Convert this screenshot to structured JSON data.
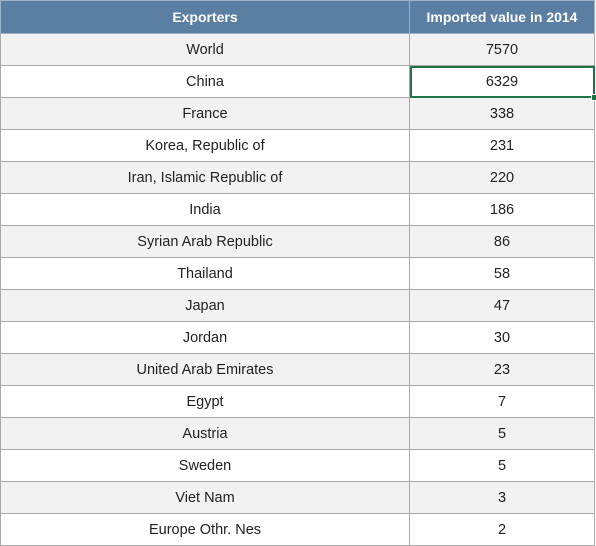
{
  "table": {
    "headers": {
      "exporters": "Exporters",
      "value": "Imported value in 2014"
    },
    "rows": [
      {
        "exporter": "World",
        "value": "7570"
      },
      {
        "exporter": "China",
        "value": "6329"
      },
      {
        "exporter": "France",
        "value": "338"
      },
      {
        "exporter": "Korea, Republic of",
        "value": "231"
      },
      {
        "exporter": "Iran, Islamic Republic of",
        "value": "220"
      },
      {
        "exporter": "India",
        "value": "186"
      },
      {
        "exporter": "Syrian Arab Republic",
        "value": "86"
      },
      {
        "exporter": "Thailand",
        "value": "58"
      },
      {
        "exporter": "Japan",
        "value": "47"
      },
      {
        "exporter": "Jordan",
        "value": "30"
      },
      {
        "exporter": "United Arab Emirates",
        "value": "23"
      },
      {
        "exporter": "Egypt",
        "value": "7"
      },
      {
        "exporter": "Austria",
        "value": "5"
      },
      {
        "exporter": "Sweden",
        "value": "5"
      },
      {
        "exporter": "Viet Nam",
        "value": "3"
      },
      {
        "exporter": "Europe Othr. Nes",
        "value": "2"
      }
    ]
  },
  "colors": {
    "header_bg": "#5b7fa3",
    "header_text": "#ffffff",
    "band_bg": "#f2f2f2",
    "selection": "#217346"
  },
  "selection": {
    "active_cell": "B3"
  }
}
